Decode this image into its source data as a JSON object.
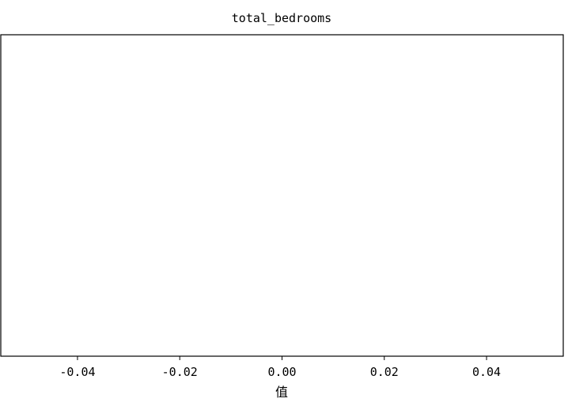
{
  "chart_data": {
    "type": "bar",
    "title": "total_bedrooms",
    "xlabel": "值",
    "ylabel": "",
    "xlim": [
      -0.055,
      0.055
    ],
    "x_ticks": [
      -0.04,
      -0.02,
      0.0,
      0.02,
      0.04
    ],
    "x_tick_labels": [
      "-0.04",
      "-0.02",
      "0.00",
      "0.02",
      "0.04"
    ],
    "y_ticks": [],
    "grid": false,
    "legend": "none",
    "series": [],
    "colors": {
      "frame": "#000000",
      "background": "#ffffff",
      "text": "#000000"
    }
  }
}
